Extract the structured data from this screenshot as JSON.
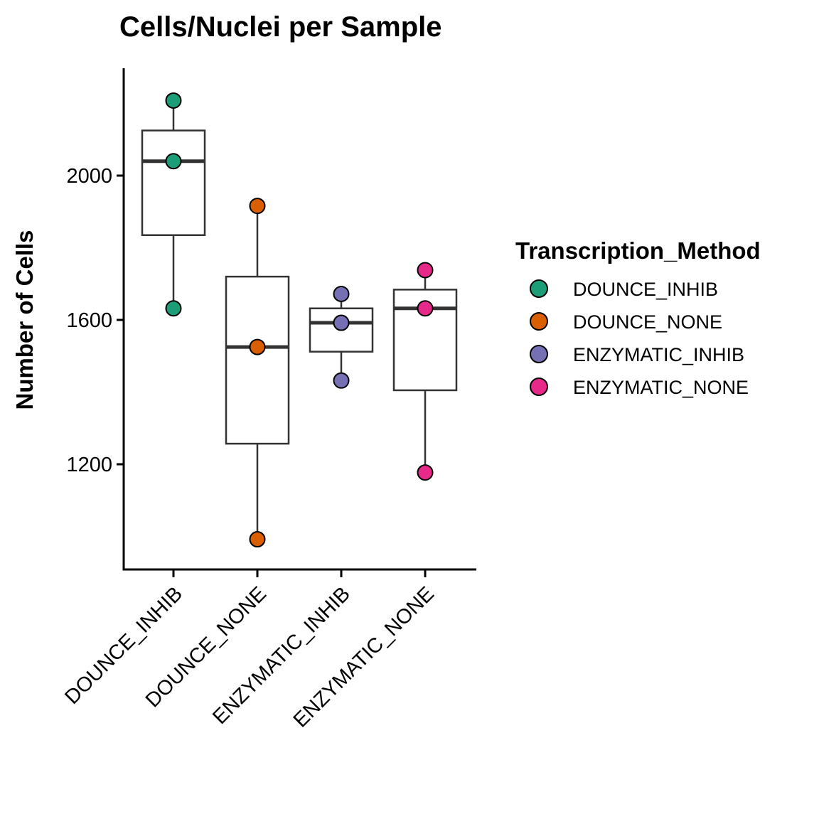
{
  "chart_data": {
    "type": "boxplot",
    "title": "Cells/Nuclei per Sample",
    "xlabel": "",
    "ylabel": "Number of Cells",
    "ylim": [
      964,
      2340
    ],
    "yticks": [
      1200,
      1600,
      2000
    ],
    "categories": [
      "DOUNCE_INHIB",
      "DOUNCE_NONE",
      "ENZYMATIC_INHIB",
      "ENZYMATIC_NONE"
    ],
    "colors": [
      "#1b9e77",
      "#d95f02",
      "#7570b3",
      "#e7298a"
    ],
    "boxes": [
      {
        "q1": 1835,
        "median": 2040,
        "q3": 2125,
        "whisker_low": 1632,
        "whisker_high": 2208
      },
      {
        "q1": 1257,
        "median": 1525,
        "q3": 1720,
        "whisker_low": 992,
        "whisker_high": 1916
      },
      {
        "q1": 1512,
        "median": 1592,
        "q3": 1632,
        "whisker_low": 1432,
        "whisker_high": 1672
      },
      {
        "q1": 1405,
        "median": 1632,
        "q3": 1684,
        "whisker_low": 1177,
        "whisker_high": 1738
      }
    ],
    "points": [
      [
        2208,
        2040,
        1632
      ],
      [
        1916,
        1525,
        992
      ],
      [
        1672,
        1592,
        1432
      ],
      [
        1738,
        1632,
        1177
      ]
    ],
    "legend": {
      "title": "Transcription_Method",
      "entries": [
        "DOUNCE_INHIB",
        "DOUNCE_NONE",
        "ENZYMATIC_INHIB",
        "ENZYMATIC_NONE"
      ],
      "position": "right"
    },
    "grid": false
  }
}
